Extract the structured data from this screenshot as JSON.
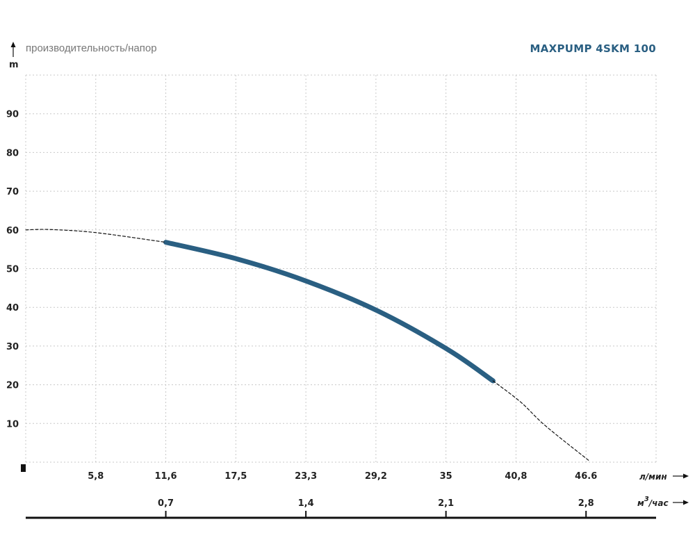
{
  "header": {
    "title": "MAXPUMP 4SKM 100",
    "subtitle": "производительность/напор",
    "ylabel": "m"
  },
  "axes": {
    "lpm_unit": "л/мин",
    "m3_unit_base": "м",
    "m3_unit_sup": "3",
    "m3_unit_rest": "/час",
    "lpm_ticks": [
      "5,8",
      "11,6",
      "17,5",
      "23,3",
      "29,2",
      "35",
      "40,8",
      "46.6"
    ],
    "m3_ticks": [
      "0,7",
      "1,4",
      "2,1",
      "2,8"
    ],
    "y_ticks": [
      "10",
      "20",
      "30",
      "40",
      "50",
      "60",
      "70",
      "80",
      "90"
    ]
  },
  "colors": {
    "curve": "#2a5f82",
    "title": "#2a5f82",
    "grid": "#c8c8c8",
    "axis": "#111111"
  },
  "chart_data": {
    "type": "line",
    "title": "MAXPUMP 4SKM 100",
    "subtitle": "производительность/напор",
    "xlabel": "л/мин",
    "x2label": "м3/час",
    "ylabel": "m",
    "xlim": [
      0,
      52.2
    ],
    "ylim": [
      0,
      100
    ],
    "grid": true,
    "series": [
      {
        "style": "solid",
        "x": [
          11.6,
          17.5,
          23.3,
          29.2,
          35,
          38.7
        ],
        "y": [
          56.8,
          52.5,
          46.7,
          39,
          29,
          21
        ]
      },
      {
        "style": "dashed",
        "x": [
          0,
          2,
          5.8,
          11.6
        ],
        "y": [
          60,
          60.1,
          59.3,
          56.8
        ]
      },
      {
        "style": "dashed",
        "x": [
          38.7,
          41,
          43,
          46.6
        ],
        "y": [
          21,
          15.5,
          9.5,
          0.5
        ]
      }
    ]
  }
}
